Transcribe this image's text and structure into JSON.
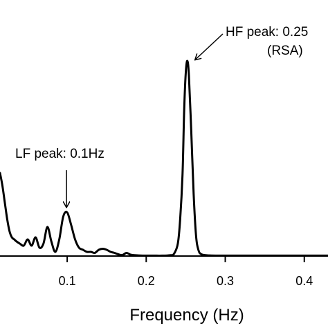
{
  "chart_data": {
    "type": "line",
    "xlabel": "Frequency (Hz)",
    "ylabel": "",
    "title": "",
    "x_ticks": [
      "0.1",
      "0.2",
      "0.3",
      "0.4"
    ],
    "x_tick_values": [
      0.1,
      0.2,
      0.3,
      0.4
    ],
    "xlim": [
      0.015,
      0.43
    ],
    "ylim": [
      0,
      1
    ],
    "grid": false,
    "series": [
      {
        "name": "",
        "x": [
          0.015,
          0.018,
          0.021,
          0.024,
          0.027,
          0.03,
          0.033,
          0.036,
          0.04,
          0.045,
          0.05,
          0.055,
          0.06,
          0.065,
          0.07,
          0.075,
          0.08,
          0.085,
          0.09,
          0.095,
          0.1,
          0.105,
          0.11,
          0.115,
          0.12,
          0.125,
          0.13,
          0.135,
          0.14,
          0.145,
          0.15,
          0.155,
          0.16,
          0.165,
          0.17,
          0.175,
          0.18,
          0.185,
          0.19,
          0.2,
          0.21,
          0.22,
          0.23,
          0.235,
          0.24,
          0.243,
          0.246,
          0.248,
          0.25,
          0.252,
          0.254,
          0.257,
          0.26,
          0.263,
          0.266,
          0.27,
          0.28,
          0.3,
          0.32,
          0.35,
          0.38,
          0.41,
          0.43
        ],
        "y": [
          0.4,
          0.34,
          0.26,
          0.18,
          0.12,
          0.09,
          0.08,
          0.07,
          0.06,
          0.05,
          0.08,
          0.05,
          0.09,
          0.04,
          0.06,
          0.14,
          0.07,
          0.02,
          0.08,
          0.19,
          0.21,
          0.15,
          0.08,
          0.04,
          0.03,
          0.02,
          0.02,
          0.015,
          0.03,
          0.035,
          0.03,
          0.02,
          0.015,
          0.008,
          0.005,
          0.015,
          0.007,
          0.004,
          0.003,
          0.002,
          0.002,
          0.002,
          0.004,
          0.01,
          0.06,
          0.18,
          0.4,
          0.7,
          0.88,
          0.94,
          0.87,
          0.6,
          0.3,
          0.1,
          0.03,
          0.008,
          0.003,
          0.002,
          0.002,
          0.002,
          0.002,
          0.002,
          0.002
        ]
      }
    ],
    "annotations": [
      {
        "line1": "LF peak: 0.1Hz",
        "line2": "",
        "x": 0.1,
        "y": 0.21
      },
      {
        "line1": "HF peak: 0.25",
        "line2": "(RSA)",
        "x": 0.25,
        "y": 0.94
      }
    ]
  }
}
